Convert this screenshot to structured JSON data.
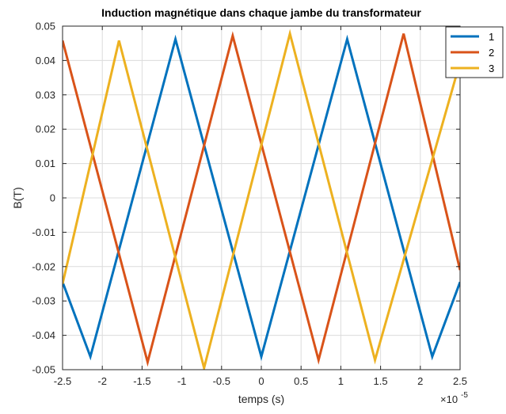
{
  "chart_data": {
    "type": "line",
    "title": "Induction magnétique dans chaque jambe du transformateur",
    "xlabel": "temps (s)",
    "ylabel": "B(T)",
    "x_exponent_label": "×10",
    "x_exponent_power": "-5",
    "xlim": [
      -2.5,
      2.5
    ],
    "ylim": [
      -0.05,
      0.05
    ],
    "xticks": [
      "-2.5",
      "-2",
      "-1.5",
      "-1",
      "-0.5",
      "0",
      "0.5",
      "1",
      "1.5",
      "2",
      "2.5"
    ],
    "yticks": [
      "0.05",
      "0.04",
      "0.03",
      "0.02",
      "0.01",
      "0",
      "-0.01",
      "-0.02",
      "-0.03",
      "-0.04",
      "-0.05"
    ],
    "grid": true,
    "legend_position": "top-right",
    "series": [
      {
        "name": "1",
        "color": "#0072BD",
        "x": [
          -2.5,
          -2.15,
          -1.08,
          0.0,
          1.08,
          2.15,
          2.5
        ],
        "y": [
          -0.0245,
          -0.0462,
          0.0462,
          -0.0462,
          0.0462,
          -0.0462,
          -0.0245
        ]
      },
      {
        "name": "2",
        "color": "#D95319",
        "x": [
          -2.5,
          -1.43,
          -0.36,
          0.72,
          1.79,
          2.5
        ],
        "y": [
          0.0458,
          -0.0478,
          0.0472,
          -0.0472,
          0.0478,
          -0.021
        ]
      },
      {
        "name": "3",
        "color": "#EDB120",
        "x": [
          -2.5,
          -1.79,
          -0.72,
          0.36,
          1.43,
          2.5
        ],
        "y": [
          -0.025,
          0.0458,
          -0.0495,
          0.0478,
          -0.0472,
          0.0395
        ]
      }
    ]
  }
}
